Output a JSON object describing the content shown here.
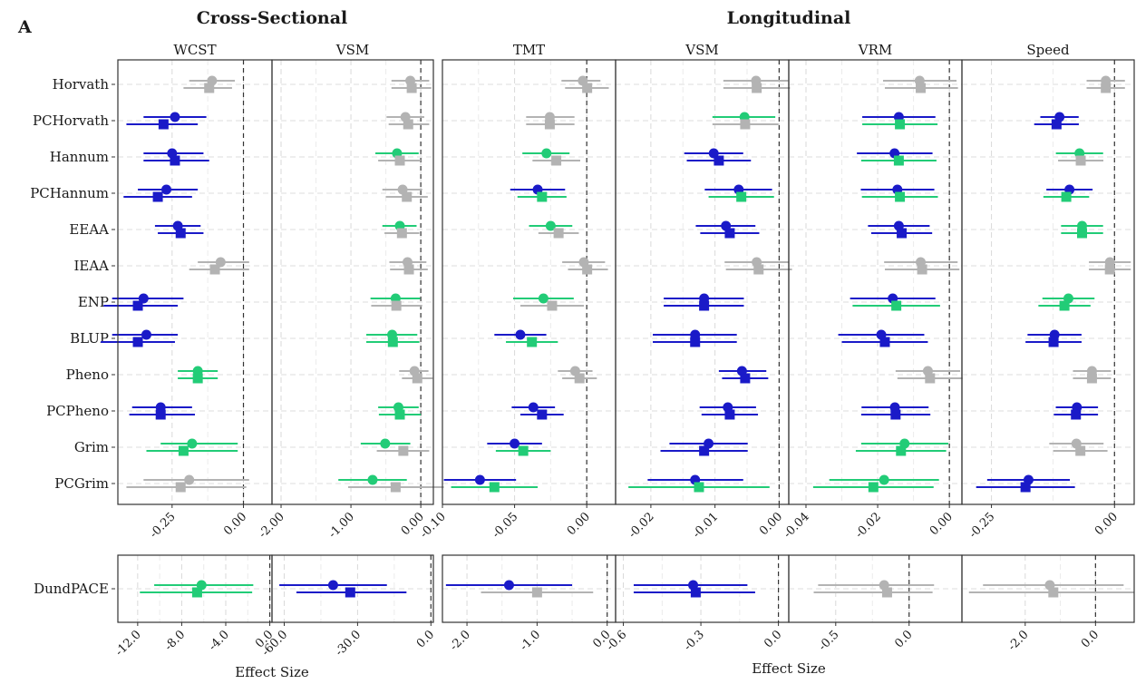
{
  "panel_letter": "A",
  "groups": [
    {
      "id": "cross",
      "title": "Cross-Sectional",
      "xlabel": "Effect Size"
    },
    {
      "id": "long",
      "title": "Longitudinal",
      "xlabel": "Effect Size"
    }
  ],
  "colors": {
    "significant_blue": "#1a1ac8",
    "significant_green": "#22cc77",
    "nonsignificant_grey": "#b3b3b3"
  },
  "chart_data": {
    "type": "forest",
    "rows": [
      "Horvath",
      "PCHorvath",
      "Hannum",
      "PCHannum",
      "EEAA",
      "IEAA",
      "ENP",
      "BLUP",
      "Pheno",
      "PCPheno",
      "Grim",
      "PCGrim"
    ],
    "bottom_rows": [
      "DundPACE"
    ],
    "legend": "none",
    "marker_note": "circle = model 1 estimate, square = model 2 estimate",
    "panels": [
      {
        "group": "cross",
        "label": "WCST",
        "xlim": [
          -0.44,
          0.1
        ],
        "ticks": [
          -0.25,
          0.0
        ],
        "points": [
          [
            -0.11,
            -0.19,
            -0.03,
            "g",
            -0.12,
            -0.21,
            -0.04,
            "g"
          ],
          [
            -0.24,
            -0.35,
            -0.13,
            "b",
            -0.28,
            -0.41,
            -0.16,
            "b"
          ],
          [
            -0.25,
            -0.35,
            -0.14,
            "b",
            -0.24,
            -0.35,
            -0.12,
            "b"
          ],
          [
            -0.27,
            -0.37,
            -0.16,
            "b",
            -0.3,
            -0.42,
            -0.18,
            "b"
          ],
          [
            -0.23,
            -0.31,
            -0.15,
            "b",
            -0.22,
            -0.3,
            -0.14,
            "b"
          ],
          [
            -0.08,
            -0.16,
            0.02,
            "g",
            -0.1,
            -0.19,
            0.02,
            "g"
          ],
          [
            -0.35,
            -0.46,
            -0.21,
            "b",
            -0.37,
            -0.49,
            -0.23,
            "b"
          ],
          [
            -0.34,
            -0.46,
            -0.23,
            "b",
            -0.37,
            -0.5,
            -0.24,
            "b"
          ],
          [
            -0.16,
            -0.23,
            -0.09,
            "G",
            -0.16,
            -0.23,
            -0.09,
            "G"
          ],
          [
            -0.29,
            -0.39,
            -0.18,
            "b",
            -0.29,
            -0.4,
            -0.17,
            "b"
          ],
          [
            -0.18,
            -0.29,
            -0.02,
            "G",
            -0.21,
            -0.34,
            -0.02,
            "G"
          ],
          [
            -0.19,
            -0.35,
            0.02,
            "g",
            -0.22,
            -0.41,
            0.01,
            "g"
          ]
        ],
        "bottom": {
          "xlim": [
            -13.8,
            0.2
          ],
          "ticks": [
            -12.0,
            -8.0,
            -4.0,
            0.0
          ],
          "points": [
            [
              -6.2,
              -10.5,
              -1.5,
              "G",
              -6.6,
              -11.8,
              -1.6,
              "G"
            ]
          ]
        }
      },
      {
        "group": "cross",
        "label": "VSM",
        "xlim": [
          -2.13,
          0.18
        ],
        "ticks": [
          -2.0,
          -1.0,
          0.0
        ],
        "points": [
          [
            -0.15,
            -0.42,
            0.12,
            "g",
            -0.13,
            -0.42,
            0.15,
            "g"
          ],
          [
            -0.22,
            -0.49,
            0.05,
            "g",
            -0.18,
            -0.46,
            0.12,
            "g"
          ],
          [
            -0.34,
            -0.65,
            -0.03,
            "G",
            -0.3,
            -0.61,
            0.0,
            "g"
          ],
          [
            -0.26,
            -0.55,
            0.02,
            "g",
            -0.2,
            -0.5,
            0.1,
            "g"
          ],
          [
            -0.3,
            -0.55,
            -0.06,
            "G",
            -0.27,
            -0.52,
            -0.02,
            "g"
          ],
          [
            -0.19,
            -0.45,
            0.08,
            "g",
            -0.17,
            -0.44,
            0.1,
            "g"
          ],
          [
            -0.36,
            -0.72,
            -0.01,
            "G",
            -0.35,
            -0.71,
            0.02,
            "g"
          ],
          [
            -0.41,
            -0.78,
            -0.05,
            "G",
            -0.4,
            -0.78,
            -0.02,
            "G"
          ],
          [
            -0.09,
            -0.31,
            0.11,
            "g",
            -0.05,
            -0.27,
            0.17,
            "g"
          ],
          [
            -0.32,
            -0.61,
            -0.03,
            "G",
            -0.3,
            -0.6,
            0.0,
            "G"
          ],
          [
            -0.51,
            -0.86,
            -0.15,
            "G",
            -0.25,
            -0.63,
            0.12,
            "g"
          ],
          [
            -0.69,
            -1.18,
            -0.2,
            "G",
            -0.36,
            -1.04,
            0.33,
            "g"
          ]
        ],
        "bottom": {
          "xlim": [
            -65.0,
            1.0
          ],
          "ticks": [
            -60.0,
            -30.0,
            0.0
          ],
          "points": [
            [
              -40.0,
              -62.0,
              -18.0,
              "b",
              -33.0,
              -55.0,
              -10.0,
              "b"
            ]
          ]
        }
      },
      {
        "group": "long",
        "label": "TMT",
        "xlim": [
          -0.1,
          0.02
        ],
        "ticks": [
          -0.1,
          -0.05,
          0.0
        ],
        "points": [
          [
            -0.0027,
            -0.0175,
            0.0095,
            "g",
            0.0003,
            -0.015,
            0.0153,
            "g"
          ],
          [
            -0.0256,
            -0.042,
            -0.0085,
            "g",
            -0.0256,
            -0.042,
            -0.0085,
            "g"
          ],
          [
            -0.0279,
            -0.0446,
            -0.0119,
            "G",
            -0.0211,
            -0.0376,
            -0.0045,
            "g"
          ],
          [
            -0.034,
            -0.053,
            -0.015,
            "b",
            -0.031,
            -0.048,
            -0.014,
            "G"
          ],
          [
            -0.025,
            -0.04,
            -0.01,
            "G",
            -0.0195,
            -0.0335,
            -0.0055,
            "g"
          ],
          [
            -0.002,
            -0.017,
            0.0127,
            "g",
            0.0003,
            -0.013,
            0.0147,
            "g"
          ],
          [
            -0.03,
            -0.051,
            -0.009,
            "G",
            -0.024,
            -0.046,
            -0.002,
            "g"
          ],
          [
            -0.046,
            -0.064,
            -0.028,
            "b",
            -0.038,
            -0.056,
            -0.02,
            "G"
          ],
          [
            -0.008,
            -0.02,
            0.004,
            "g",
            -0.005,
            -0.017,
            0.007,
            "g"
          ],
          [
            -0.037,
            -0.052,
            -0.022,
            "b",
            -0.031,
            -0.046,
            -0.016,
            "b"
          ],
          [
            -0.05,
            -0.069,
            -0.031,
            "b",
            -0.044,
            -0.063,
            -0.025,
            "G"
          ],
          [
            -0.074,
            -0.099,
            -0.049,
            "b",
            -0.064,
            -0.094,
            -0.034,
            "G"
          ]
        ],
        "bottom": {
          "xlim": [
            -2.35,
            0.12
          ],
          "ticks": [
            -2.0,
            -1.0,
            0.0
          ],
          "points": [
            [
              -1.4,
              -2.3,
              -0.5,
              "b",
              -1.0,
              -1.8,
              -0.2,
              "g"
            ]
          ]
        }
      },
      {
        "group": "long",
        "label": "VSM",
        "xlim": [
          -0.0255,
          0.0015
        ],
        "ticks": [
          -0.02,
          -0.01,
          0.0
        ],
        "points": [
          [
            -0.0036,
            -0.0087,
            0.0014,
            "g",
            -0.0035,
            -0.0087,
            0.0017,
            "g"
          ],
          [
            -0.0054,
            -0.0104,
            -0.0006,
            "G",
            -0.0053,
            -0.0104,
            -0.0001,
            "g"
          ],
          [
            -0.0102,
            -0.0148,
            -0.0056,
            "b",
            -0.0094,
            -0.0144,
            -0.0044,
            "b"
          ],
          [
            -0.0063,
            -0.0116,
            -0.0011,
            "b",
            -0.0059,
            -0.011,
            -0.0008,
            "G"
          ],
          [
            -0.0083,
            -0.013,
            -0.0037,
            "b",
            -0.0077,
            -0.0123,
            -0.0031,
            "b"
          ],
          [
            -0.0035,
            -0.0085,
            0.0015,
            "g",
            -0.0032,
            -0.0083,
            0.002,
            "g"
          ],
          [
            -0.0117,
            -0.018,
            -0.0055,
            "b",
            -0.0117,
            -0.018,
            -0.0055,
            "b"
          ],
          [
            -0.0131,
            -0.0197,
            -0.0066,
            "b",
            -0.0131,
            -0.0197,
            -0.0066,
            "b"
          ],
          [
            -0.0058,
            -0.0094,
            -0.002,
            "b",
            -0.0053,
            -0.0089,
            -0.0017,
            "b"
          ],
          [
            -0.008,
            -0.0124,
            -0.0036,
            "b",
            -0.0077,
            -0.0121,
            -0.0033,
            "b"
          ],
          [
            -0.011,
            -0.0171,
            -0.0049,
            "b",
            -0.0117,
            -0.0185,
            -0.0049,
            "b"
          ],
          [
            -0.0131,
            -0.0205,
            -0.0056,
            "b",
            -0.0125,
            -0.0235,
            -0.0015,
            "G"
          ]
        ],
        "bottom": {
          "xlim": [
            -0.63,
            0.04
          ],
          "ticks": [
            -0.6,
            -0.3,
            0.0
          ],
          "points": [
            [
              -0.33,
              -0.56,
              -0.12,
              "b",
              -0.32,
              -0.56,
              -0.09,
              "b"
            ]
          ]
        }
      },
      {
        "group": "long",
        "label": "VRM",
        "xlim": [
          -0.0448,
          0.0035
        ],
        "ticks": [
          -0.04,
          -0.02,
          0.0
        ],
        "points": [
          [
            -0.0083,
            -0.0185,
            0.002,
            "g",
            -0.008,
            -0.018,
            0.0024,
            "g"
          ],
          [
            -0.0141,
            -0.0243,
            -0.0039,
            "b",
            -0.0138,
            -0.0243,
            -0.0033,
            "G"
          ],
          [
            -0.0153,
            -0.0258,
            -0.0047,
            "b",
            -0.0141,
            -0.0246,
            -0.0036,
            "G"
          ],
          [
            -0.0145,
            -0.0247,
            -0.0042,
            "b",
            -0.0138,
            -0.0244,
            -0.0032,
            "G"
          ],
          [
            -0.0141,
            -0.0227,
            -0.0055,
            "b",
            -0.0133,
            -0.0218,
            -0.0048,
            "b"
          ],
          [
            -0.008,
            -0.0182,
            0.0023,
            "g",
            -0.0076,
            -0.018,
            0.0028,
            "g"
          ],
          [
            -0.0158,
            -0.0277,
            -0.0039,
            "b",
            -0.0148,
            -0.027,
            -0.0026,
            "G"
          ],
          [
            -0.019,
            -0.031,
            -0.007,
            "b",
            -0.018,
            -0.03,
            -0.006,
            "b"
          ],
          [
            -0.006,
            -0.015,
            0.003,
            "g",
            -0.0054,
            -0.0145,
            0.0037,
            "g"
          ],
          [
            -0.0152,
            -0.0245,
            -0.0058,
            "b",
            -0.015,
            -0.0246,
            -0.0053,
            "b"
          ],
          [
            -0.0125,
            -0.0246,
            -0.0003,
            "G",
            -0.0135,
            -0.0261,
            -0.0009,
            "G"
          ],
          [
            -0.0182,
            -0.0335,
            -0.0029,
            "G",
            -0.0212,
            -0.038,
            -0.0044,
            "G"
          ]
        ],
        "bottom": {
          "xlim": [
            -0.82,
            0.36
          ],
          "ticks": [
            -0.5,
            0.0
          ],
          "points": [
            [
              -0.17,
              -0.62,
              0.17,
              "g",
              -0.15,
              -0.65,
              0.16,
              "g"
            ]
          ]
        }
      },
      {
        "group": "long",
        "label": "Speed",
        "xlim": [
          -0.31,
          0.04
        ],
        "ticks": [
          -0.25,
          0.0
        ],
        "points": [
          [
            -0.0177,
            -0.0567,
            0.0212,
            "g",
            -0.0177,
            -0.0567,
            0.0212,
            "g"
          ],
          [
            -0.1117,
            -0.1507,
            -0.0728,
            "b",
            -0.1178,
            -0.1632,
            -0.0725,
            "b"
          ],
          [
            -0.0711,
            -0.1191,
            -0.0231,
            "G",
            -0.0686,
            -0.1146,
            -0.0226,
            "g"
          ],
          [
            -0.0915,
            -0.1384,
            -0.0445,
            "b",
            -0.098,
            -0.1445,
            -0.0515,
            "G"
          ],
          [
            -0.0659,
            -0.1086,
            -0.0232,
            "G",
            -0.0659,
            -0.1086,
            -0.0232,
            "G"
          ],
          [
            -0.0094,
            -0.052,
            0.0331,
            "g",
            -0.0094,
            -0.052,
            0.0331,
            "g"
          ],
          [
            -0.0936,
            -0.1465,
            -0.0406,
            "G",
            -0.1017,
            -0.1546,
            -0.0487,
            "G"
          ],
          [
            -0.1218,
            -0.1767,
            -0.067,
            "b",
            -0.1238,
            -0.1808,
            -0.0669,
            "b"
          ],
          [
            -0.0458,
            -0.0844,
            -0.0071,
            "g",
            -0.0458,
            -0.0844,
            -0.0071,
            "g"
          ],
          [
            -0.0764,
            -0.1193,
            -0.0335,
            "b",
            -0.0784,
            -0.1233,
            -0.0335,
            "b"
          ],
          [
            -0.0774,
            -0.1325,
            -0.0222,
            "g",
            -0.0693,
            -0.1244,
            -0.0142,
            "g"
          ],
          [
            -0.1747,
            -0.2587,
            -0.0907,
            "b",
            -0.1808,
            -0.2811,
            -0.0804,
            "b"
          ]
        ],
        "bottom": {
          "xlim": [
            -3.8,
            1.1
          ],
          "ticks": [
            -2.0,
            0.0
          ],
          "points": [
            [
              -1.3,
              -3.2,
              0.8,
              "g",
              -1.2,
              -3.6,
              1.1,
              "g"
            ]
          ]
        }
      }
    ]
  }
}
